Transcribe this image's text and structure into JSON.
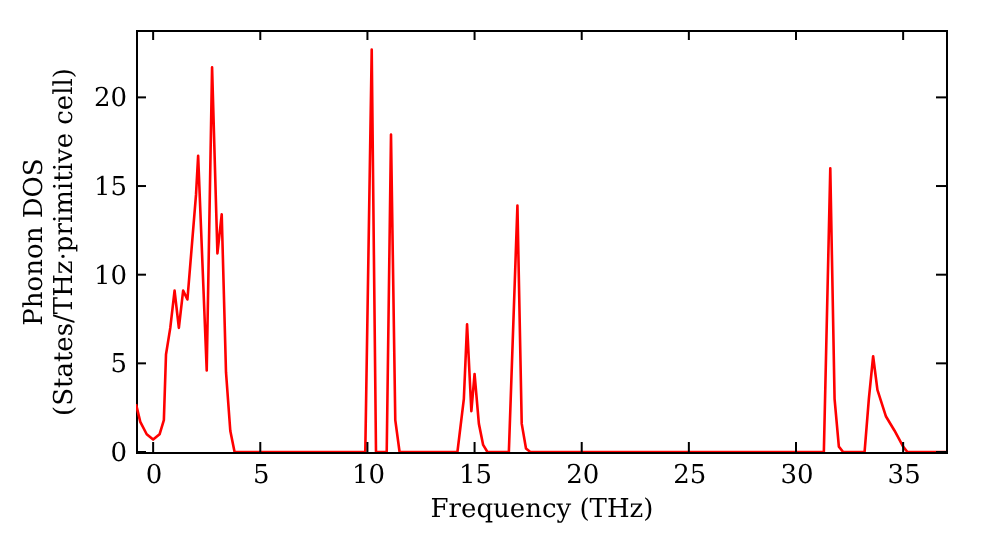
{
  "chart_data": {
    "type": "line",
    "xlabel": "Frequency (THz)",
    "ylabel": "Phonon DOS\n(States/THz·primitive cell)",
    "x": [
      -0.8,
      -0.6,
      -0.3,
      0,
      0.3,
      0.5,
      0.6,
      0.8,
      1.0,
      1.2,
      1.4,
      1.6,
      2.0,
      2.1,
      2.5,
      2.75,
      3.0,
      3.2,
      3.4,
      3.6,
      3.8,
      9.9,
      10.2,
      10.4,
      10.9,
      11.1,
      11.3,
      11.5,
      14.2,
      14.5,
      14.65,
      14.85,
      15.0,
      15.2,
      15.4,
      15.6,
      16.6,
      17.0,
      17.2,
      17.4,
      17.6,
      31.3,
      31.6,
      31.8,
      32.0,
      32.2,
      33.2,
      33.4,
      33.6,
      33.8,
      34.2,
      34.6,
      35.0,
      35.2,
      37
    ],
    "series": [
      {
        "color": "#ff0000",
        "values": [
          2.7,
          1.7,
          1.0,
          0.7,
          1.0,
          1.8,
          5.5,
          7,
          9.1,
          7,
          9.1,
          8.6,
          14.5,
          16.7,
          4.6,
          21.7,
          11.2,
          13.4,
          4.5,
          1.2,
          0,
          0,
          22.7,
          0,
          0,
          17.9,
          1.8,
          0,
          0,
          3,
          7.2,
          2.3,
          4.4,
          1.6,
          0.4,
          0,
          0,
          13.9,
          1.6,
          0.2,
          0,
          0,
          16,
          3,
          0.3,
          0,
          0,
          3,
          5.4,
          3.5,
          2,
          1.2,
          0.3,
          0,
          0
        ]
      }
    ],
    "xlim": [
      -0.8,
      37
    ],
    "xticks": [
      0,
      5,
      10,
      15,
      20,
      25,
      30,
      35
    ],
    "ylim": [
      0,
      23.8
    ],
    "yticks": [
      0,
      5,
      10,
      15,
      20
    ],
    "grid": false,
    "legend": false,
    "line_style": "solid",
    "marker": "none"
  }
}
